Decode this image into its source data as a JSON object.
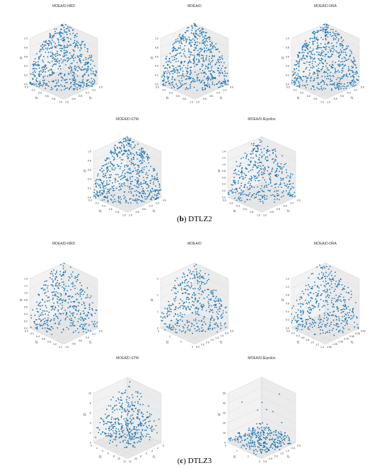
{
  "sections": [
    {
      "letter": "b",
      "caption": "DTLZ2"
    },
    {
      "letter": "c",
      "caption": "DTLZ3"
    }
  ],
  "chart_data": [
    {
      "type": "scatter",
      "projection": "3d",
      "section": "DTLZ2",
      "title": "MOEA/D-NRD",
      "xlabel": "f1",
      "ylabel": "f2",
      "zlabel": "f3",
      "xlim": [
        0,
        1
      ],
      "ylim": [
        0,
        1
      ],
      "zlim": [
        0,
        1
      ],
      "xticks": [
        "0.0",
        "0.2",
        "0.4",
        "0.6",
        "0.8",
        "1.0"
      ],
      "yticks": [
        "0.0",
        "0.2",
        "0.4",
        "0.6",
        "0.8",
        "1.0"
      ],
      "zticks": [
        "0.0",
        "0.2",
        "0.4",
        "0.6",
        "0.8",
        "1.0"
      ],
      "shape": "sphere-uniform",
      "points": 600,
      "grid": true
    },
    {
      "type": "scatter",
      "projection": "3d",
      "section": "DTLZ2",
      "title": "MOEA/D",
      "xlabel": "f1",
      "ylabel": "f2",
      "zlabel": "f3",
      "xlim": [
        0,
        1
      ],
      "ylim": [
        0,
        1
      ],
      "zlim": [
        0,
        1
      ],
      "xticks": [
        "0.0",
        "0.2",
        "0.4",
        "0.6",
        "0.8",
        "1.0"
      ],
      "yticks": [
        "0.0",
        "0.2",
        "0.4",
        "0.6",
        "0.8",
        "1.0"
      ],
      "zticks": [
        "0.0",
        "0.2",
        "0.4",
        "0.6",
        "0.8",
        "1.0"
      ],
      "shape": "sphere-uniform",
      "points": 600,
      "grid": true
    },
    {
      "type": "scatter",
      "projection": "3d",
      "section": "DTLZ2",
      "title": "MOEA/D-DRA",
      "xlabel": "f1",
      "ylabel": "f2",
      "zlabel": "f3",
      "xlim": [
        0,
        1
      ],
      "ylim": [
        0,
        1
      ],
      "zlim": [
        0,
        1
      ],
      "xticks": [
        "0.0",
        "0.2",
        "0.4",
        "0.6",
        "0.8",
        "1.0"
      ],
      "yticks": [
        "0.0",
        "0.2",
        "0.4",
        "0.6",
        "0.8",
        "1.0"
      ],
      "zticks": [
        "0.0",
        "0.2",
        "0.4",
        "0.6",
        "0.8",
        "1.0"
      ],
      "shape": "sphere-uniform",
      "points": 600,
      "grid": true
    },
    {
      "type": "scatter",
      "projection": "3d",
      "section": "DTLZ2",
      "title": "MOEA/D-STM",
      "xlabel": "f1",
      "ylabel": "f2",
      "zlabel": "f3",
      "xlim": [
        0,
        1
      ],
      "ylim": [
        0,
        1
      ],
      "zlim": [
        0,
        1
      ],
      "xticks": [
        "0.0",
        "0.2",
        "0.4",
        "0.6",
        "0.8",
        "1.0"
      ],
      "yticks": [
        "0.0",
        "0.2",
        "0.4",
        "0.6",
        "0.8",
        "1.0"
      ],
      "zticks": [
        "0.0",
        "0.2",
        "0.4",
        "0.6",
        "0.8",
        "1.0"
      ],
      "shape": "sphere-uniform",
      "points": 600,
      "grid": true
    },
    {
      "type": "scatter",
      "projection": "3d",
      "section": "DTLZ2",
      "title": "MOEA/D-IEpsilon",
      "xlabel": "f1",
      "ylabel": "f2",
      "zlabel": "f3",
      "xlim": [
        0,
        1
      ],
      "ylim": [
        0,
        1
      ],
      "zlim": [
        0,
        1.4
      ],
      "xticks": [
        "0.0",
        "0.2",
        "0.4",
        "0.6",
        "0.8",
        "1.0"
      ],
      "yticks": [
        "0.0",
        "0.2",
        "0.4",
        "0.6",
        "0.8",
        "1.0"
      ],
      "zticks": [
        "0.0",
        "0.2",
        "0.4",
        "0.6",
        "0.8",
        "1.0",
        "1.2",
        "1.4"
      ],
      "shape": "sphere-noisy",
      "points": 420,
      "grid": true
    },
    {
      "type": "scatter",
      "projection": "3d",
      "section": "DTLZ3",
      "title": "MOEA/D-NRD",
      "xlabel": "f1",
      "ylabel": "f2",
      "zlabel": "f3",
      "xlim": [
        0,
        1.0
      ],
      "ylim": [
        0,
        1.2
      ],
      "zlim": [
        0,
        1.4
      ],
      "xticks": [
        "0.0",
        "0.2",
        "0.4",
        "0.6",
        "0.8",
        "1.0"
      ],
      "yticks": [
        "0.0",
        "0.2",
        "0.4",
        "0.6",
        "0.8",
        "1.0",
        "1.2"
      ],
      "zticks": [
        "0.0",
        "0.2",
        "0.4",
        "0.6",
        "0.8",
        "1.0",
        "1.2",
        "1.4"
      ],
      "shape": "sphere-noisy",
      "points": 420,
      "grid": true
    },
    {
      "type": "scatter",
      "projection": "3d",
      "section": "DTLZ3",
      "title": "MOEA/D",
      "xlabel": "f1",
      "ylabel": "f2",
      "zlabel": "f3",
      "xlim": [
        0,
        3.5
      ],
      "ylim": [
        0,
        3
      ],
      "zlim": [
        0,
        3
      ],
      "xticks": [
        "0.0",
        "0.5",
        "1.0",
        "1.5",
        "2.0",
        "2.5",
        "3.0",
        "3.5"
      ],
      "yticks": [
        "0",
        "1",
        "2",
        "3"
      ],
      "zticks": [
        "0",
        "1",
        "2",
        "3"
      ],
      "shape": "sphere-noisy",
      "points": 420,
      "grid": true
    },
    {
      "type": "scatter",
      "projection": "3d",
      "section": "DTLZ3",
      "title": "MOEA/D-DRA",
      "xlabel": "f1",
      "ylabel": "f2",
      "zlabel": "f3",
      "xlim": [
        0,
        1.5
      ],
      "ylim": [
        0,
        1.4
      ],
      "zlim": [
        0,
        1.2
      ],
      "xticks": [
        "0.00",
        "0.25",
        "0.50",
        "0.75",
        "1.00",
        "1.25",
        "1.50"
      ],
      "yticks": [
        "0.0",
        "0.2",
        "0.4",
        "0.6",
        "0.8",
        "1.0",
        "1.2",
        "1.4"
      ],
      "zticks": [
        "0.0",
        "0.2",
        "0.4",
        "0.6",
        "0.8",
        "1.0",
        "1.2"
      ],
      "shape": "sphere-noisy",
      "points": 420,
      "grid": true
    },
    {
      "type": "scatter",
      "projection": "3d",
      "section": "DTLZ3",
      "title": "MOEA/D-STM",
      "xlabel": "f1",
      "ylabel": "f2",
      "zlabel": "f3",
      "xlim": [
        0,
        12
      ],
      "ylim": [
        0,
        12
      ],
      "zlim": [
        0,
        10
      ],
      "xticks": [
        "0",
        "2",
        "4",
        "6",
        "8",
        "10",
        "12"
      ],
      "yticks": [
        "0",
        "2",
        "4",
        "6",
        "8",
        "10",
        "12"
      ],
      "zticks": [
        "0",
        "2",
        "4",
        "6",
        "8",
        "10"
      ],
      "shape": "peak-scatter",
      "points": 380,
      "grid": true
    },
    {
      "type": "scatter",
      "projection": "3d",
      "section": "DTLZ3",
      "title": "MOEA/D-IEpsilon",
      "xlabel": "f1",
      "ylabel": "f2",
      "zlabel": "f3",
      "xlim": [
        0,
        3.0
      ],
      "ylim": [
        0,
        3
      ],
      "zlim": [
        0,
        50
      ],
      "xticks": [
        "0.0",
        "0.5",
        "1.0",
        "1.5",
        "2.0",
        "2.5",
        "3.0"
      ],
      "yticks": [
        "0",
        "1",
        "2",
        "3"
      ],
      "zticks": [
        "0",
        "10",
        "20",
        "30",
        "40",
        "50"
      ],
      "shape": "flat-cloud",
      "points": 300,
      "grid": true
    }
  ],
  "style": {
    "point_color": "#1f77b4",
    "pane_color": "#f2f2f2",
    "grid_color": "#d8d8d8",
    "text_color": "#333333"
  }
}
